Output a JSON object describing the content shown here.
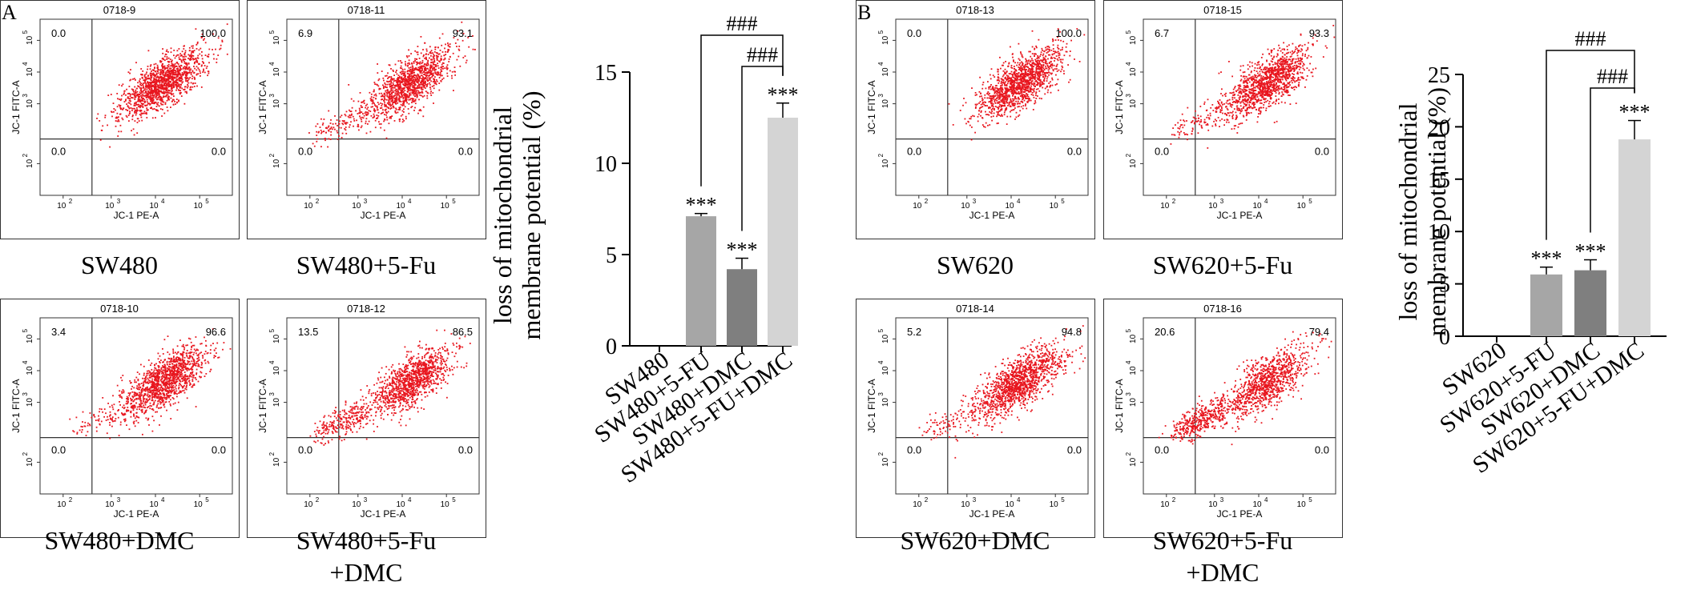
{
  "panel_labels": [
    "A",
    "B"
  ],
  "flow_axis": {
    "x_label": "JC-1 PE-A",
    "y_label": "JC-1 FITC-A",
    "tick_labels": [
      "10",
      "10",
      "10",
      "10"
    ],
    "tick_exponents": [
      "2",
      "3",
      "4",
      "5"
    ]
  },
  "flow_plots": [
    {
      "id": "0718-9",
      "caption": [
        "SW480"
      ],
      "q": [
        "0.0",
        "100.0",
        "0.0",
        "0.0"
      ]
    },
    {
      "id": "0718-11",
      "caption": [
        "SW480+5-Fu"
      ],
      "q": [
        "6.9",
        "93.1",
        "0.0",
        "0.0"
      ]
    },
    {
      "id": "0718-10",
      "caption": [
        "SW480+DMC"
      ],
      "q": [
        "3.4",
        "96.6",
        "0.0",
        "0.0"
      ]
    },
    {
      "id": "0718-12",
      "caption": [
        "SW480+5-Fu",
        "+DMC"
      ],
      "q": [
        "13.5",
        "86.5",
        "0.0",
        "0.0"
      ]
    },
    {
      "id": "0718-13",
      "caption": [
        "SW620"
      ],
      "q": [
        "0.0",
        "100.0",
        "0.0",
        "0.0"
      ]
    },
    {
      "id": "0718-15",
      "caption": [
        "SW620+5-Fu"
      ],
      "q": [
        "6.7",
        "93.3",
        "0.0",
        "0.0"
      ]
    },
    {
      "id": "0718-14",
      "caption": [
        "SW620+DMC"
      ],
      "q": [
        "5.2",
        "94.8",
        "0.0",
        "0.0"
      ]
    },
    {
      "id": "0718-16",
      "caption": [
        "SW620+5-Fu",
        "+DMC"
      ],
      "q": [
        "20.6",
        "79.4",
        "0.0",
        "0.0"
      ]
    }
  ],
  "colors": {
    "dots": "#e8161e",
    "bar_5fu": "#a6a6a6",
    "bar_dmc": "#7f7f7f",
    "bar_combo": "#d4d4d4",
    "line": "#000000"
  },
  "chart_data": [
    {
      "type": "bar",
      "ylabel_lines": [
        "loss of mitochondrial",
        "membrane potential (%)"
      ],
      "categories": [
        "SW480",
        "SW480+5-FU",
        "SW480+DMC",
        "SW480+5-FU+DMC"
      ],
      "values": [
        0,
        7.1,
        4.2,
        12.5
      ],
      "errors": [
        0,
        0.15,
        0.6,
        0.8
      ],
      "ylim": [
        0,
        15
      ],
      "yticks": [
        0,
        5,
        10,
        15
      ],
      "significance": [
        "",
        "***",
        "***",
        "***"
      ],
      "comparisons": [
        {
          "from": 1,
          "to": 3,
          "label": "###"
        },
        {
          "from": 2,
          "to": 3,
          "label": "###"
        }
      ]
    },
    {
      "type": "bar",
      "ylabel_lines": [
        "loss of mitochondrial",
        "membrane potential (%)"
      ],
      "categories": [
        "SW620",
        "SW620+5-FU",
        "SW620+DMC",
        "SW620+5-FU+DMC"
      ],
      "values": [
        0,
        5.9,
        6.3,
        18.8
      ],
      "errors": [
        0,
        0.7,
        1.0,
        1.8
      ],
      "ylim": [
        0,
        25
      ],
      "yticks": [
        0,
        5,
        10,
        15,
        20,
        25
      ],
      "significance": [
        "",
        "***",
        "***",
        "***"
      ],
      "comparisons": [
        {
          "from": 1,
          "to": 3,
          "label": "###"
        },
        {
          "from": 2,
          "to": 3,
          "label": "###"
        }
      ]
    }
  ]
}
